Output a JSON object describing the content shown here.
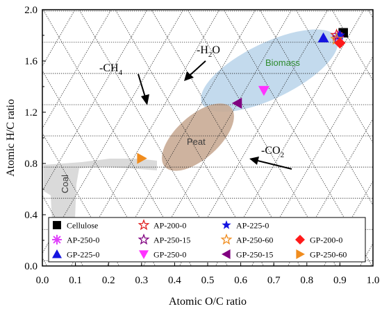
{
  "chart_data": {
    "type": "scatter",
    "title": "",
    "xlabel": "Atomic O/C ratio",
    "ylabel": "Atomic H/C ratio",
    "xlim": [
      0.0,
      1.0
    ],
    "ylim": [
      0.0,
      2.0
    ],
    "xticks": [
      "0.0",
      "0.1",
      "0.2",
      "0.3",
      "0.4",
      "0.5",
      "0.6",
      "0.7",
      "0.8",
      "0.9",
      "1.0"
    ],
    "yticks": [
      "0.0",
      "0.4",
      "0.8",
      "1.2",
      "1.6",
      "2.0"
    ],
    "grid": "dotted triangular mesh",
    "legend_position": "bottom",
    "regions": [
      {
        "label": "Biomass",
        "color": "#2e8b2e",
        "fill": "#b8d3ea"
      },
      {
        "label": "Peat",
        "color": "#3a3a3a",
        "fill": "#c9ab95"
      },
      {
        "label": "Coal",
        "color": "#3a3a3a",
        "fill": "#d6d6d6"
      }
    ],
    "annotations": [
      {
        "text": "-H",
        "sub": "2",
        "after": "O"
      },
      {
        "text": "-CH",
        "sub": "4",
        "after": ""
      },
      {
        "text": "-CO",
        "sub": "2",
        "after": ""
      }
    ],
    "series": [
      {
        "name": "Cellulose",
        "marker": "square",
        "color": "#000000",
        "x": 0.91,
        "y": 1.82
      },
      {
        "name": "AP-250-0",
        "marker": "asterisk",
        "color": "#e040fb",
        "x": 0.895,
        "y": 1.79
      },
      {
        "name": "GP-225-0",
        "marker": "triangle-up",
        "color": "#1515e0",
        "x": 0.85,
        "y": 1.78
      },
      {
        "name": "AP-200-0",
        "marker": "star-open",
        "color": "#e02020",
        "x": 0.89,
        "y": 1.8
      },
      {
        "name": "AP-250-15",
        "marker": "star-open",
        "color": "#800080",
        "x": 0.895,
        "y": 1.78
      },
      {
        "name": "GP-250-0",
        "marker": "triangle-down",
        "color": "#ff33ff",
        "x": 0.67,
        "y": 1.37
      },
      {
        "name": "AP-225-0",
        "marker": "star-filled",
        "color": "#1515e0",
        "x": 0.9,
        "y": 1.8
      },
      {
        "name": "AP-250-60",
        "marker": "star-open",
        "color": "#f08c1e",
        "x": 0.89,
        "y": 1.77
      },
      {
        "name": "GP-250-15",
        "marker": "triangle-left",
        "color": "#800080",
        "x": 0.59,
        "y": 1.27
      },
      {
        "name": "GP-200-0",
        "marker": "diamond",
        "color": "#ff1a1a",
        "x": 0.9,
        "y": 1.74
      },
      {
        "name": "GP-250-60",
        "marker": "triangle-right",
        "color": "#f08c1e",
        "x": 0.3,
        "y": 0.84
      }
    ]
  }
}
